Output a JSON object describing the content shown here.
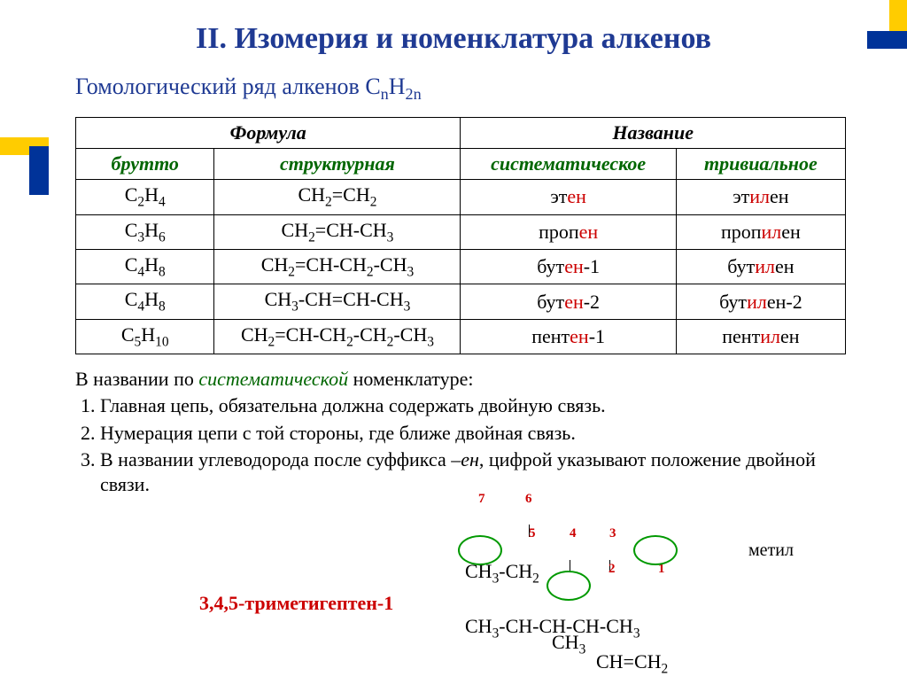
{
  "title": "II. Изомерия и номенклатура алкенов",
  "subtitle_text": "Гомологический ряд алкенов ",
  "subtitle_formula": "C<sub>n</sub>H<sub>2n</sub>",
  "table": {
    "header_formula": "Формула",
    "header_name": "Название",
    "sub_brutto": "брутто",
    "sub_struct": "структурная",
    "sub_syst": "систематическое",
    "sub_triv": "тривиальное",
    "rows": [
      {
        "brutto": "C<sub>2</sub>H<sub>4</sub>",
        "struct": "CH<sub>2</sub>=CH<sub>2</sub>",
        "syst_pre": "эт",
        "syst_en": "ен",
        "syst_post": "",
        "triv_pre": "эт",
        "triv_il": "ил",
        "triv_post": "ен"
      },
      {
        "brutto": "C<sub>3</sub>H<sub>6</sub>",
        "struct": "CH<sub>2</sub>=CH-CH<sub>3</sub>",
        "syst_pre": "проп",
        "syst_en": "ен",
        "syst_post": "",
        "triv_pre": "проп",
        "triv_il": "ил",
        "triv_post": "ен"
      },
      {
        "brutto": "C<sub>4</sub>H<sub>8</sub>",
        "struct": "CH<sub>2</sub>=CH-CH<sub>2</sub>-CH<sub>3</sub>",
        "syst_pre": "бут",
        "syst_en": "ен",
        "syst_post": "-1",
        "triv_pre": "бут",
        "triv_il": "ил",
        "triv_post": "ен"
      },
      {
        "brutto": "C<sub>4</sub>H<sub>8</sub>",
        "struct": "CH<sub>3</sub>-CH=CH-CH<sub>3</sub>",
        "syst_pre": "бут",
        "syst_en": "ен",
        "syst_post": "-2",
        "triv_pre": "бут",
        "triv_il": "ил",
        "triv_post": "ен-2"
      },
      {
        "brutto": "C<sub>5</sub>H<sub>10</sub>",
        "struct": "CH<sub>2</sub>=CH-CH<sub>2</sub>-CH<sub>2</sub>-CH<sub>3</sub>",
        "syst_pre": "пент",
        "syst_en": "ен",
        "syst_post": "-1",
        "triv_pre": "пент",
        "triv_il": "ил",
        "triv_post": "ен"
      }
    ]
  },
  "notes": {
    "intro_pre": "В названии по ",
    "intro_syst": "систематической",
    "intro_post": " номенклатуре:",
    "rule1": "Главная цепь, обязательна должна содержать двойную связь.",
    "rule2": "Нумерация цепи с той стороны, где ближе двойная связь.",
    "rule3_pre": "В названии углеводорода после суффикса ",
    "rule3_en": "–ен",
    "rule3_post": ", цифрой указывают положение двойной связи."
  },
  "example": {
    "name": "3,4,5-триметигептен-1",
    "methyl": "метил",
    "nums": {
      "n1": "1",
      "n2": "2",
      "n3": "3",
      "n4": "4",
      "n5": "5",
      "n6": "6",
      "n7": "7"
    },
    "row1": "CH<sub>3</sub>-CH<sub>2</sub>",
    "row2": "CH<sub>3</sub>-CH-CH-CH-CH<sub>3</sub>",
    "row3a": "CH<sub>3</sub>",
    "row3b": "CH=CH<sub>2</sub>"
  },
  "colors": {
    "title": "#1f3a93",
    "green": "#006600",
    "red": "#cc0000",
    "circle": "#009900",
    "deco_yellow": "#ffcc00",
    "deco_blue": "#003399"
  }
}
